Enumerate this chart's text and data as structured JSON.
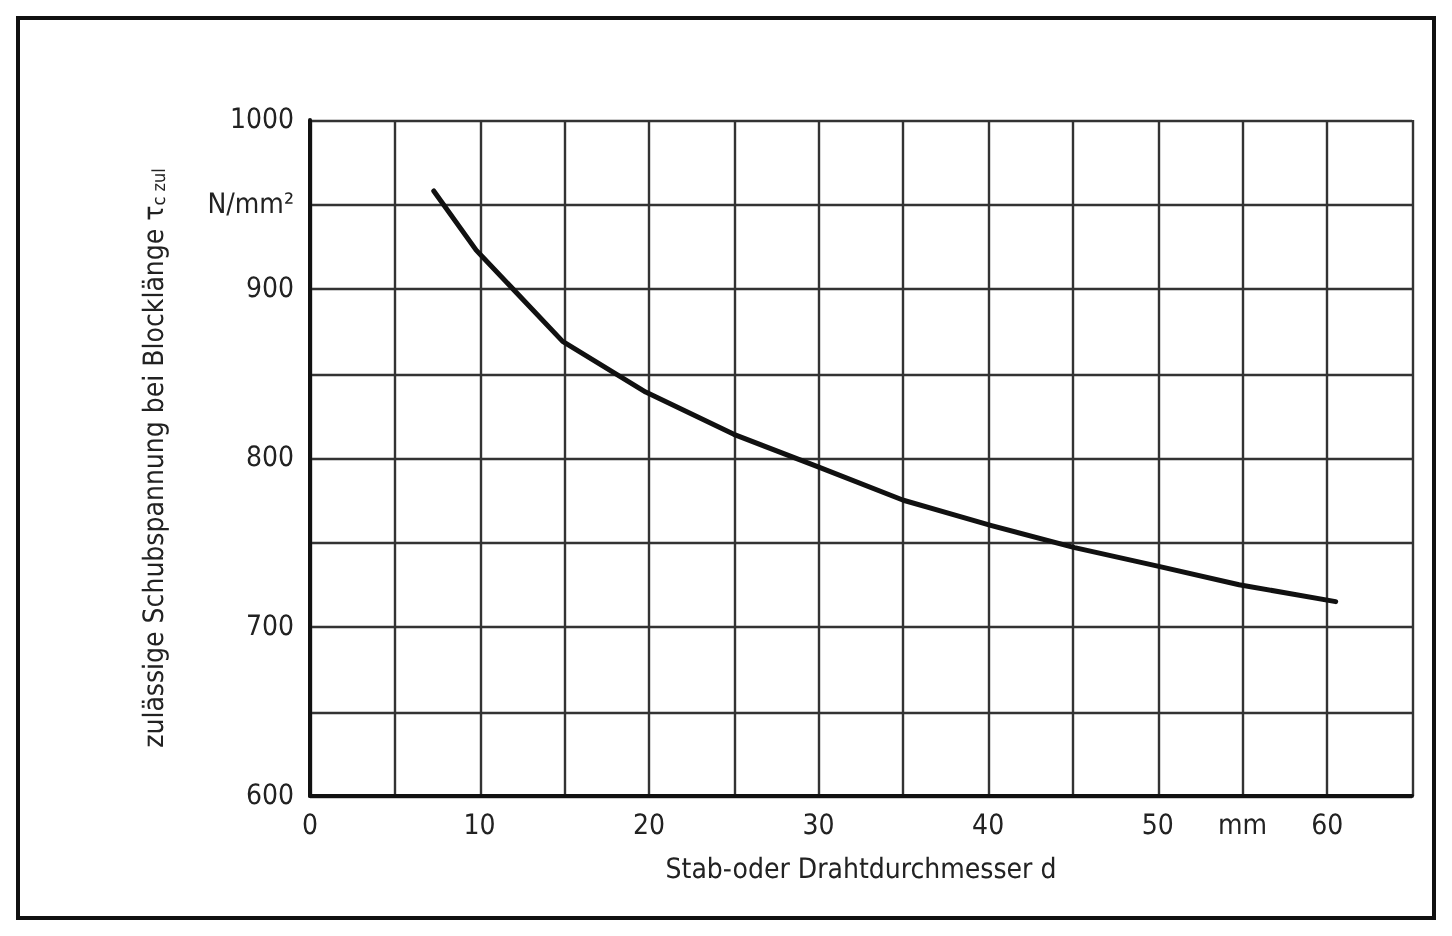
{
  "chart_data": {
    "type": "line",
    "xlabel": "Stab-oder Drahtdurchmesser d",
    "ylabel": "zulässige Schubspannung bei Blocklänge τ$_{c zul}$",
    "x": [
      7.3,
      9.8,
      14.9,
      19.8,
      25,
      29.9,
      35,
      40.2,
      45.1,
      50,
      54.8,
      60.5
    ],
    "series": [
      {
        "color": "#111111",
        "values": [
          958,
          923,
          869,
          839,
          814,
          795,
          775,
          760,
          747,
          736,
          725,
          715
        ]
      }
    ],
    "xlim": [
      0,
      65
    ],
    "xticks": [
      0,
      {
        "value": 5,
        "label": null
      },
      10,
      {
        "value": 15,
        "label": null
      },
      20,
      {
        "value": 25,
        "label": null
      },
      30,
      {
        "value": 35,
        "label": null
      },
      40,
      {
        "value": 45,
        "label": null
      },
      50,
      {
        "value": 55,
        "label": "mm"
      },
      60,
      {
        "value": 65,
        "label": null
      }
    ],
    "ylim": [
      600,
      1000
    ],
    "yticks": [
      600,
      {
        "value": 650,
        "label": null
      },
      700,
      {
        "value": 750,
        "label": null
      },
      800,
      {
        "value": 850,
        "label": null
      },
      900,
      {
        "value": 950,
        "label": "N/mm²"
      },
      1000
    ],
    "grid": true,
    "marker": "none",
    "line_style": "solid"
  }
}
